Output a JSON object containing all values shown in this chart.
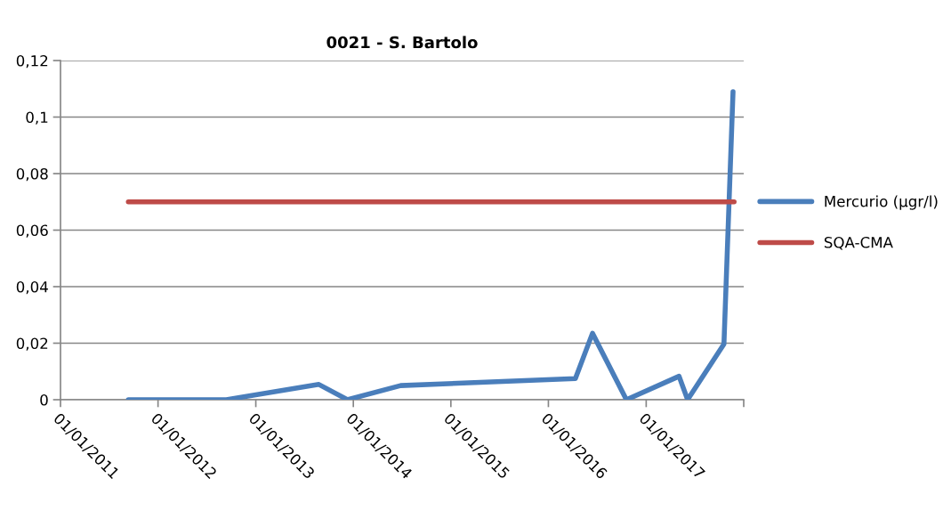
{
  "chart_data": {
    "type": "line",
    "title": "0021 - S. Bartolo",
    "series": [
      {
        "name": "Mercurio (µgr/l)",
        "color": "#4a7ebb",
        "x": [
          "2011-09-12",
          "2012-09-12",
          "2013-08-25",
          "2013-12-10",
          "2014-06-27",
          "2016-04-11",
          "2016-06-14",
          "2016-10-19",
          "2017-05-04",
          "2017-06-05",
          "2017-10-19",
          "2017-11-22"
        ],
        "values": [
          0,
          0,
          0.0054,
          0,
          0.005,
          0.0075,
          0.0235,
          0,
          0.0083,
          0,
          0.0197,
          0.109
        ]
      },
      {
        "name": "SQA-CMA",
        "color": "#be4b48",
        "x": [
          "2011-09-12",
          "2017-11-26"
        ],
        "values": [
          0.07,
          0.07
        ]
      }
    ],
    "xlim": [
      "2011-01-01",
      "2018-01-01"
    ],
    "xticks": [
      {
        "value": "2011-01-01",
        "label": "01/01/2011"
      },
      {
        "value": "2012-01-01",
        "label": "01/01/2012"
      },
      {
        "value": "2013-01-01",
        "label": "01/01/2013"
      },
      {
        "value": "2014-01-01",
        "label": "01/01/2014"
      },
      {
        "value": "2015-01-01",
        "label": "01/01/2015"
      },
      {
        "value": "2016-01-01",
        "label": "01/01/2016"
      },
      {
        "value": "2017-01-01",
        "label": "01/01/2017"
      },
      {
        "value": "2018-01-01",
        "label": null
      }
    ],
    "ylim": [
      0,
      0.12
    ],
    "yticks": [
      0,
      {
        "value": 0.02,
        "label": "0,02"
      },
      {
        "value": 0.04,
        "label": "0,04"
      },
      {
        "value": 0.06,
        "label": "0,06"
      },
      {
        "value": 0.08,
        "label": "0,08"
      },
      {
        "value": 0.1,
        "label": "0,1"
      },
      {
        "value": 0.12,
        "label": "0,12"
      }
    ],
    "grid": "y",
    "legend": "right",
    "marker": "none",
    "line_style": "solid"
  }
}
